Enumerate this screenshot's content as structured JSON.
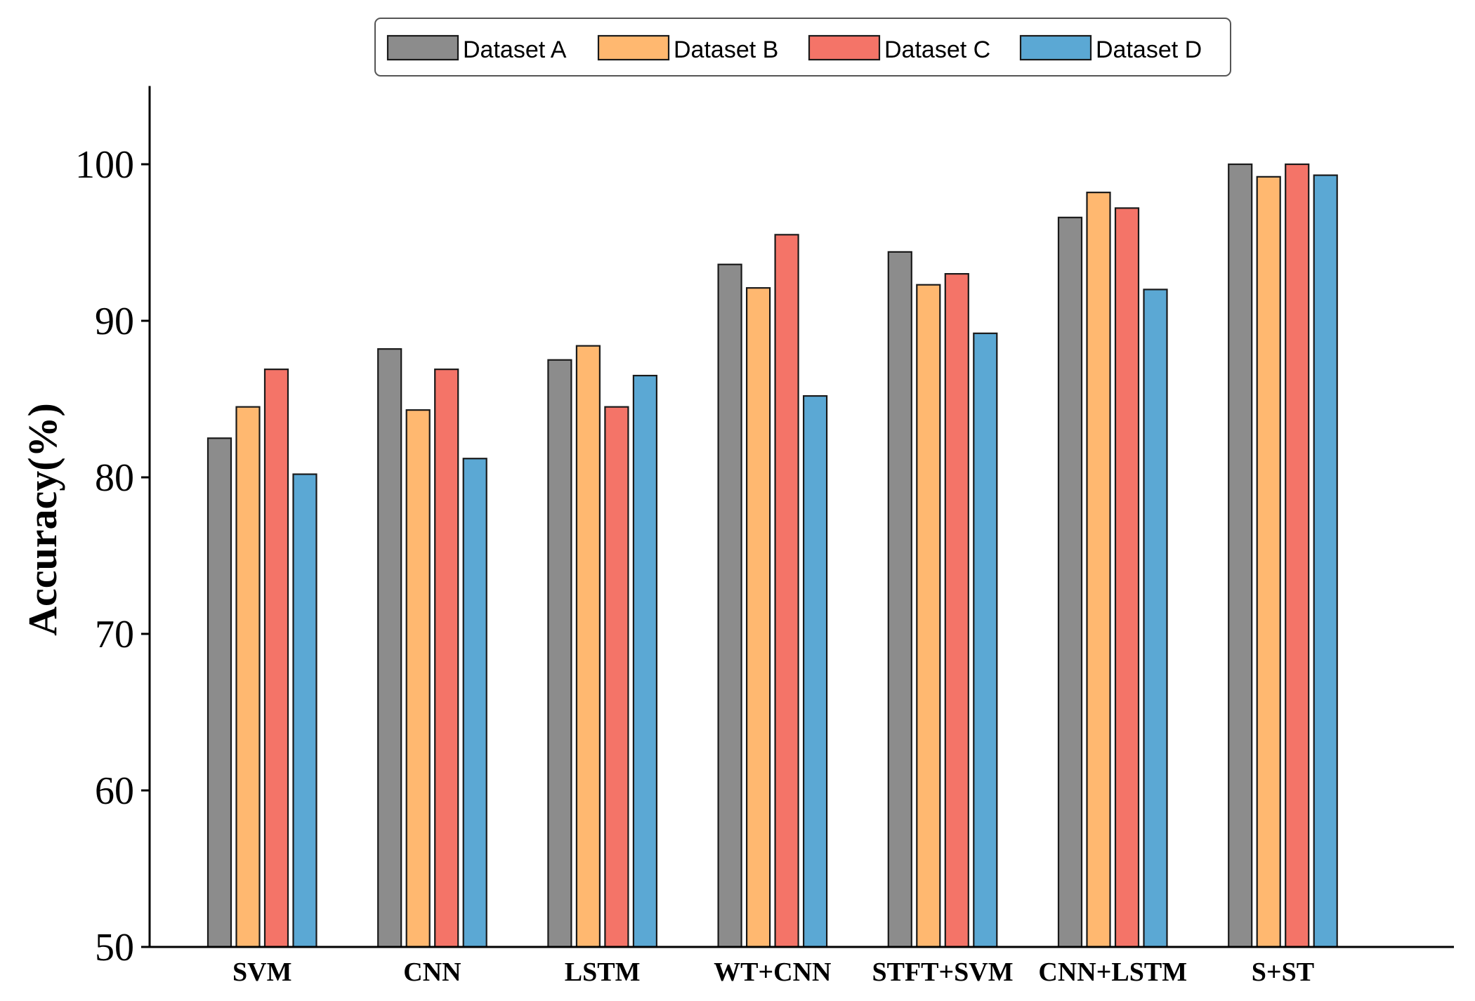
{
  "chart_data": {
    "type": "bar",
    "title": "",
    "xlabel": "",
    "ylabel": "Accuracy(%)",
    "ylim": [
      50,
      105
    ],
    "yticks": [
      50,
      60,
      70,
      80,
      90,
      100
    ],
    "grid": false,
    "legend_position": "top-center",
    "categories": [
      "SVM",
      "CNN",
      "LSTM",
      "WT+CNN",
      "STFT+SVM",
      "CNN+LSTM",
      "S+ST"
    ],
    "series": [
      {
        "name": "Dataset A",
        "color": "#8c8c8c",
        "values": [
          82.5,
          88.2,
          87.5,
          93.6,
          94.4,
          96.6,
          100.0
        ]
      },
      {
        "name": "Dataset B",
        "color": "#ffb870",
        "values": [
          84.5,
          84.3,
          88.4,
          92.1,
          92.3,
          98.2,
          99.2
        ]
      },
      {
        "name": "Dataset C",
        "color": "#f47468",
        "values": [
          86.9,
          86.9,
          84.5,
          95.5,
          93.0,
          97.2,
          100.0
        ]
      },
      {
        "name": "Dataset D",
        "color": "#5ba8d4",
        "values": [
          80.2,
          81.2,
          86.5,
          85.2,
          89.2,
          92.0,
          99.3
        ]
      }
    ]
  }
}
